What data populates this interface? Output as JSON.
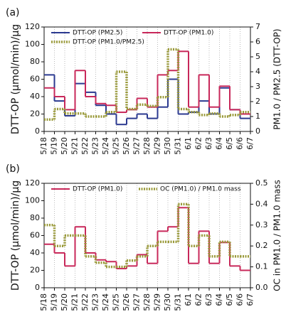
{
  "chart_data": [
    {
      "type": "line",
      "panel": "(a)",
      "y_label": "DTT-OP (μmol/min)/μg",
      "y2_label": "PM1.0 / PM2.5 (DTT-OP)",
      "categories": [
        "5/18",
        "5/19",
        "5/20",
        "5/21",
        "5/22",
        "5/23",
        "5/24",
        "5/25",
        "5/26",
        "5/27",
        "5/28",
        "5/29",
        "5/30",
        "5/31",
        "6/1",
        "6/2",
        "6/3",
        "6/4",
        "6/5",
        "6/6",
        "6/7"
      ],
      "series": [
        {
          "name": "DTT-OP (PM2.5)",
          "color": "#2b3990",
          "values": [
            65,
            35,
            18,
            55,
            45,
            30,
            20,
            8,
            15,
            20,
            15,
            28,
            60,
            20,
            22,
            35,
            20,
            50,
            25,
            15,
            null
          ]
        },
        {
          "name": "DTT-OP (PM1.0)",
          "color": "#c8285a",
          "values": [
            50,
            40,
            25,
            70,
            40,
            32,
            30,
            22,
            25,
            38,
            28,
            65,
            70,
            92,
            28,
            65,
            28,
            52,
            25,
            20,
            null
          ]
        },
        {
          "name": "DTT-OP (PM1.0/PM2.5)",
          "color": "#9a9a3a",
          "axis": "y2",
          "values": [
            0.8,
            1.5,
            1.2,
            1.2,
            1.0,
            1.0,
            1.3,
            4.0,
            1.5,
            1.8,
            1.7,
            2.3,
            5.5,
            1.5,
            1.3,
            1.1,
            1.2,
            1.0,
            1.1,
            1.3,
            null
          ]
        }
      ],
      "ylim": [
        0,
        120
      ],
      "yticks": [
        0,
        20,
        40,
        60,
        80,
        100,
        120
      ],
      "y2lim": [
        0,
        7
      ],
      "y2ticks": [
        0,
        1,
        2,
        3,
        4,
        5,
        6,
        7
      ],
      "grid": true
    },
    {
      "type": "line",
      "panel": "(b)",
      "y_label": "DTT-OP (μmol/min)/μg",
      "y2_label": "OC in PM1.0 / PM1.0 mass",
      "categories": [
        "5/18",
        "5/19",
        "5/20",
        "5/21",
        "5/22",
        "5/23",
        "5/24",
        "5/25",
        "5/26",
        "5/27",
        "5/28",
        "5/29",
        "5/30",
        "5/31",
        "6/1",
        "6/2",
        "6/3",
        "6/4",
        "6/5",
        "6/6",
        "6/7"
      ],
      "series": [
        {
          "name": "DTT-OP (PM1.0)",
          "color": "#c8285a",
          "values": [
            50,
            40,
            25,
            70,
            40,
            32,
            30,
            22,
            25,
            38,
            28,
            65,
            70,
            92,
            28,
            65,
            28,
            52,
            25,
            20,
            null
          ]
        },
        {
          "name": "OC (PM1.0) / PM1.0 mass",
          "color": "#9a9a3a",
          "axis": "y2",
          "values": [
            0.3,
            0.2,
            0.25,
            0.25,
            0.15,
            0.12,
            0.1,
            0.1,
            0.13,
            0.15,
            0.2,
            0.22,
            0.22,
            0.4,
            0.2,
            0.25,
            0.15,
            0.22,
            0.15,
            0.15,
            null
          ]
        }
      ],
      "ylim": [
        0,
        120
      ],
      "yticks": [
        0,
        20,
        40,
        60,
        80,
        100,
        120
      ],
      "y2lim": [
        0,
        0.5
      ],
      "y2ticks": [
        {
          "value": 0,
          "label": "0.0"
        },
        0.1,
        0.2,
        0.3,
        0.4,
        0.5
      ],
      "grid": true
    }
  ]
}
